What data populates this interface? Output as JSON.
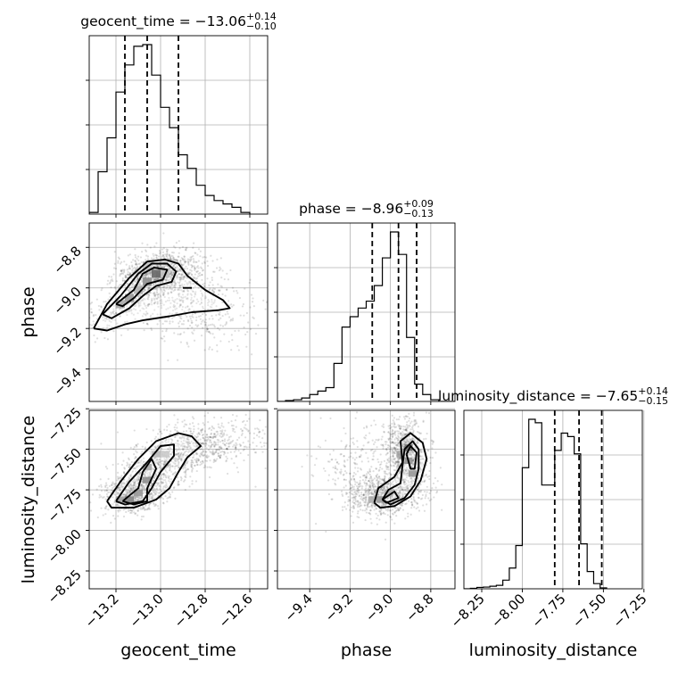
{
  "chart_data": {
    "type": "corner",
    "grid": true,
    "parameters": [
      {
        "key": "geocent_time",
        "label": "geocent_time",
        "title_prefix": "geocent_time = ",
        "median": "−13.06",
        "err_plus": "+0.14",
        "err_minus": "−0.10",
        "quantiles": [
          -13.16,
          -13.06,
          -12.92
        ],
        "range": [
          -13.32,
          -12.52
        ],
        "ticks": [
          -13.2,
          -13.0,
          -12.8,
          -12.6
        ],
        "tick_labels": [
          "−13.2",
          "−13.0",
          "−12.8",
          "−12.6"
        ],
        "hist_edges_start": -13.32,
        "hist_bin_width": 0.04,
        "hist_values": [
          0.01,
          0.25,
          0.45,
          0.72,
          0.88,
          0.99,
          1.0,
          0.82,
          0.63,
          0.51,
          0.35,
          0.27,
          0.17,
          0.11,
          0.08,
          0.06,
          0.04,
          0.01
        ]
      },
      {
        "key": "phase",
        "label": "phase",
        "title_prefix": "phase = ",
        "median": "−8.96",
        "err_plus": "+0.09",
        "err_minus": "−0.13",
        "quantiles": [
          -9.09,
          -8.96,
          -8.87
        ],
        "range": [
          -9.56,
          -8.68
        ],
        "ticks": [
          -9.4,
          -9.2,
          -9.0,
          -8.8
        ],
        "tick_labels": [
          "−9.4",
          "−9.2",
          "−9.0",
          "−8.8"
        ],
        "hist_edges_start": -9.56,
        "hist_bin_width": 0.04,
        "hist_values": [
          0.0,
          0.005,
          0.01,
          0.02,
          0.04,
          0.06,
          0.08,
          0.22,
          0.43,
          0.49,
          0.54,
          0.58,
          0.67,
          0.83,
          0.98,
          0.85,
          0.37,
          0.1,
          0.04,
          0.01,
          0.0,
          0.0
        ]
      },
      {
        "key": "luminosity_distance",
        "label": "luminosity_distance",
        "title_prefix": "luminosity_distance = ",
        "median": "−7.65",
        "err_plus": "+0.14",
        "err_minus": "−0.15",
        "quantiles": [
          -7.8,
          -7.65,
          -7.51
        ],
        "range": [
          -8.36,
          -7.26
        ],
        "ticks": [
          -8.25,
          -8.0,
          -7.75,
          -7.5,
          -7.25
        ],
        "tick_labels": [
          "−8.25",
          "−8.00",
          "−7.75",
          "−7.50",
          "−7.25"
        ],
        "hist_edges_start": -8.36,
        "hist_bin_width": 0.04,
        "hist_values": [
          0.0,
          0.003,
          0.008,
          0.01,
          0.015,
          0.02,
          0.05,
          0.12,
          0.25,
          0.7,
          0.98,
          0.96,
          0.6,
          0.6,
          0.8,
          0.9,
          0.88,
          0.78,
          0.26,
          0.1,
          0.03,
          0.005
        ]
      }
    ],
    "pairs": [
      {
        "x": "geocent_time",
        "y": "phase",
        "blobs": [
          {
            "cx": -13.04,
            "cy": -8.93,
            "sx": 0.08,
            "sy": 0.05,
            "rho": 0.3,
            "n": 700
          },
          {
            "cx": -13.1,
            "cy": -9.03,
            "sx": 0.12,
            "sy": 0.09,
            "rho": 0.8,
            "n": 500
          },
          {
            "cx": -12.85,
            "cy": -9.08,
            "sx": 0.14,
            "sy": 0.1,
            "rho": -0.2,
            "n": 500
          },
          {
            "cx": -12.95,
            "cy": -8.93,
            "sx": 0.08,
            "sy": 0.06,
            "rho": 0.0,
            "n": 300
          }
        ],
        "grey_cells": [
          {
            "x": -13.02,
            "y": -8.93,
            "level": 0.85
          },
          {
            "x": -13.06,
            "y": -8.97,
            "level": 0.6
          },
          {
            "x": -13.14,
            "y": -9.05,
            "level": 0.55
          },
          {
            "x": -13.18,
            "y": -9.08,
            "level": 0.45
          },
          {
            "x": -13.1,
            "y": -9.01,
            "level": 0.4
          },
          {
            "x": -12.98,
            "y": -8.93,
            "level": 0.3
          },
          {
            "x": -13.06,
            "y": -8.89,
            "level": 0.3
          }
        ],
        "contours": [
          [
            [
              -13.3,
              -9.2
            ],
            [
              -13.24,
              -9.08
            ],
            [
              -13.14,
              -8.95
            ],
            [
              -13.06,
              -8.87
            ],
            [
              -12.98,
              -8.86
            ],
            [
              -12.92,
              -8.88
            ],
            [
              -12.88,
              -8.94
            ],
            [
              -12.8,
              -9.01
            ],
            [
              -12.72,
              -9.06
            ],
            [
              -12.69,
              -9.1
            ],
            [
              -12.74,
              -9.11
            ],
            [
              -12.86,
              -9.12
            ],
            [
              -12.96,
              -9.14
            ],
            [
              -13.08,
              -9.16
            ],
            [
              -13.16,
              -9.18
            ],
            [
              -13.24,
              -9.21
            ],
            [
              -13.3,
              -9.2
            ]
          ],
          [
            [
              -13.26,
              -9.13
            ],
            [
              -13.18,
              -9.04
            ],
            [
              -13.1,
              -8.93
            ],
            [
              -13.04,
              -8.88
            ],
            [
              -12.97,
              -8.88
            ],
            [
              -12.93,
              -8.92
            ],
            [
              -12.95,
              -8.97
            ],
            [
              -13.02,
              -8.99
            ],
            [
              -13.08,
              -9.04
            ],
            [
              -13.14,
              -9.1
            ],
            [
              -13.22,
              -9.15
            ],
            [
              -13.26,
              -9.13
            ]
          ],
          [
            [
              -13.2,
              -9.08
            ],
            [
              -13.12,
              -9.01
            ],
            [
              -13.08,
              -8.93
            ],
            [
              -13.03,
              -8.9
            ],
            [
              -12.97,
              -8.91
            ],
            [
              -12.99,
              -8.96
            ],
            [
              -13.06,
              -8.98
            ],
            [
              -13.12,
              -9.05
            ],
            [
              -13.17,
              -9.09
            ],
            [
              -13.2,
              -9.08
            ]
          ],
          [
            [
              -12.9,
              -9.0
            ],
            [
              -12.86,
              -9.0
            ]
          ]
        ]
      },
      {
        "x": "geocent_time",
        "y": "luminosity_distance",
        "blobs": [
          {
            "cx": -13.12,
            "cy": -7.78,
            "sx": 0.07,
            "sy": 0.06,
            "rho": 0.2,
            "n": 700
          },
          {
            "cx": -13.0,
            "cy": -7.6,
            "sx": 0.1,
            "sy": 0.1,
            "rho": 0.6,
            "n": 600
          },
          {
            "cx": -12.82,
            "cy": -7.48,
            "sx": 0.14,
            "sy": 0.08,
            "rho": 0.3,
            "n": 600
          }
        ],
        "grey_cells": [
          {
            "x": -13.14,
            "y": -7.81,
            "level": 0.7
          },
          {
            "x": -13.1,
            "y": -7.77,
            "level": 0.55
          },
          {
            "x": -13.06,
            "y": -7.69,
            "level": 0.6
          },
          {
            "x": -13.06,
            "y": -7.61,
            "level": 0.45
          },
          {
            "x": -13.02,
            "y": -7.53,
            "level": 0.35
          },
          {
            "x": -13.18,
            "y": -7.81,
            "level": 0.5
          },
          {
            "x": -12.98,
            "y": -7.53,
            "level": 0.25
          }
        ],
        "contours": [
          [
            [
              -13.24,
              -7.82
            ],
            [
              -13.18,
              -7.7
            ],
            [
              -13.1,
              -7.56
            ],
            [
              -13.02,
              -7.45
            ],
            [
              -12.92,
              -7.4
            ],
            [
              -12.86,
              -7.42
            ],
            [
              -12.82,
              -7.48
            ],
            [
              -12.88,
              -7.55
            ],
            [
              -12.92,
              -7.64
            ],
            [
              -12.96,
              -7.74
            ],
            [
              -13.02,
              -7.81
            ],
            [
              -13.12,
              -7.86
            ],
            [
              -13.22,
              -7.86
            ],
            [
              -13.24,
              -7.82
            ]
          ],
          [
            [
              -13.2,
              -7.82
            ],
            [
              -13.14,
              -7.7
            ],
            [
              -13.06,
              -7.58
            ],
            [
              -13.0,
              -7.48
            ],
            [
              -12.94,
              -7.47
            ],
            [
              -12.94,
              -7.54
            ],
            [
              -13.0,
              -7.64
            ],
            [
              -13.04,
              -7.74
            ],
            [
              -13.08,
              -7.82
            ],
            [
              -13.16,
              -7.84
            ],
            [
              -13.2,
              -7.82
            ]
          ],
          [
            [
              -13.17,
              -7.82
            ],
            [
              -13.1,
              -7.74
            ],
            [
              -13.08,
              -7.64
            ],
            [
              -13.04,
              -7.56
            ],
            [
              -13.02,
              -7.62
            ],
            [
              -13.06,
              -7.74
            ],
            [
              -13.06,
              -7.82
            ],
            [
              -13.12,
              -7.84
            ],
            [
              -13.17,
              -7.82
            ]
          ]
        ]
      },
      {
        "x": "phase",
        "y": "luminosity_distance",
        "blobs": [
          {
            "cx": -8.92,
            "cy": -7.52,
            "sx": 0.05,
            "sy": 0.1,
            "rho": -0.2,
            "n": 800
          },
          {
            "cx": -9.02,
            "cy": -7.78,
            "sx": 0.09,
            "sy": 0.06,
            "rho": 0.1,
            "n": 800
          },
          {
            "cx": -9.12,
            "cy": -7.62,
            "sx": 0.12,
            "sy": 0.14,
            "rho": 0.0,
            "n": 300
          }
        ],
        "grey_cells": [
          {
            "x": -8.91,
            "y": -7.49,
            "level": 0.85
          },
          {
            "x": -8.91,
            "y": -7.57,
            "level": 0.6
          },
          {
            "x": -8.89,
            "y": -7.65,
            "level": 0.55
          },
          {
            "x": -9.05,
            "y": -7.81,
            "level": 0.55
          },
          {
            "x": -9.01,
            "y": -7.77,
            "level": 0.4
          },
          {
            "x": -8.95,
            "y": -7.53,
            "level": 0.35
          },
          {
            "x": -9.09,
            "y": -7.81,
            "level": 0.3
          }
        ],
        "contours": [
          [
            [
              -9.08,
              -7.83
            ],
            [
              -9.06,
              -7.74
            ],
            [
              -8.98,
              -7.67
            ],
            [
              -8.94,
              -7.58
            ],
            [
              -8.95,
              -7.45
            ],
            [
              -8.9,
              -7.4
            ],
            [
              -8.84,
              -7.46
            ],
            [
              -8.82,
              -7.56
            ],
            [
              -8.85,
              -7.69
            ],
            [
              -8.9,
              -7.79
            ],
            [
              -8.98,
              -7.85
            ],
            [
              -9.05,
              -7.86
            ],
            [
              -9.08,
              -7.83
            ]
          ],
          [
            [
              -9.04,
              -7.81
            ],
            [
              -9.01,
              -7.75
            ],
            [
              -8.95,
              -7.71
            ],
            [
              -8.94,
              -7.6
            ],
            [
              -8.93,
              -7.5
            ],
            [
              -8.89,
              -7.45
            ],
            [
              -8.86,
              -7.5
            ],
            [
              -8.86,
              -7.62
            ],
            [
              -8.88,
              -7.72
            ],
            [
              -8.93,
              -7.8
            ],
            [
              -9.0,
              -7.84
            ],
            [
              -9.04,
              -7.81
            ]
          ],
          [
            [
              -9.04,
              -7.81
            ],
            [
              -8.98,
              -7.76
            ],
            [
              -8.96,
              -7.8
            ],
            [
              -9.02,
              -7.83
            ],
            [
              -9.04,
              -7.81
            ]
          ],
          [
            [
              -8.92,
              -7.53
            ],
            [
              -8.9,
              -7.48
            ],
            [
              -8.87,
              -7.52
            ],
            [
              -8.88,
              -7.62
            ],
            [
              -8.9,
              -7.62
            ],
            [
              -8.92,
              -7.53
            ]
          ]
        ]
      }
    ]
  }
}
